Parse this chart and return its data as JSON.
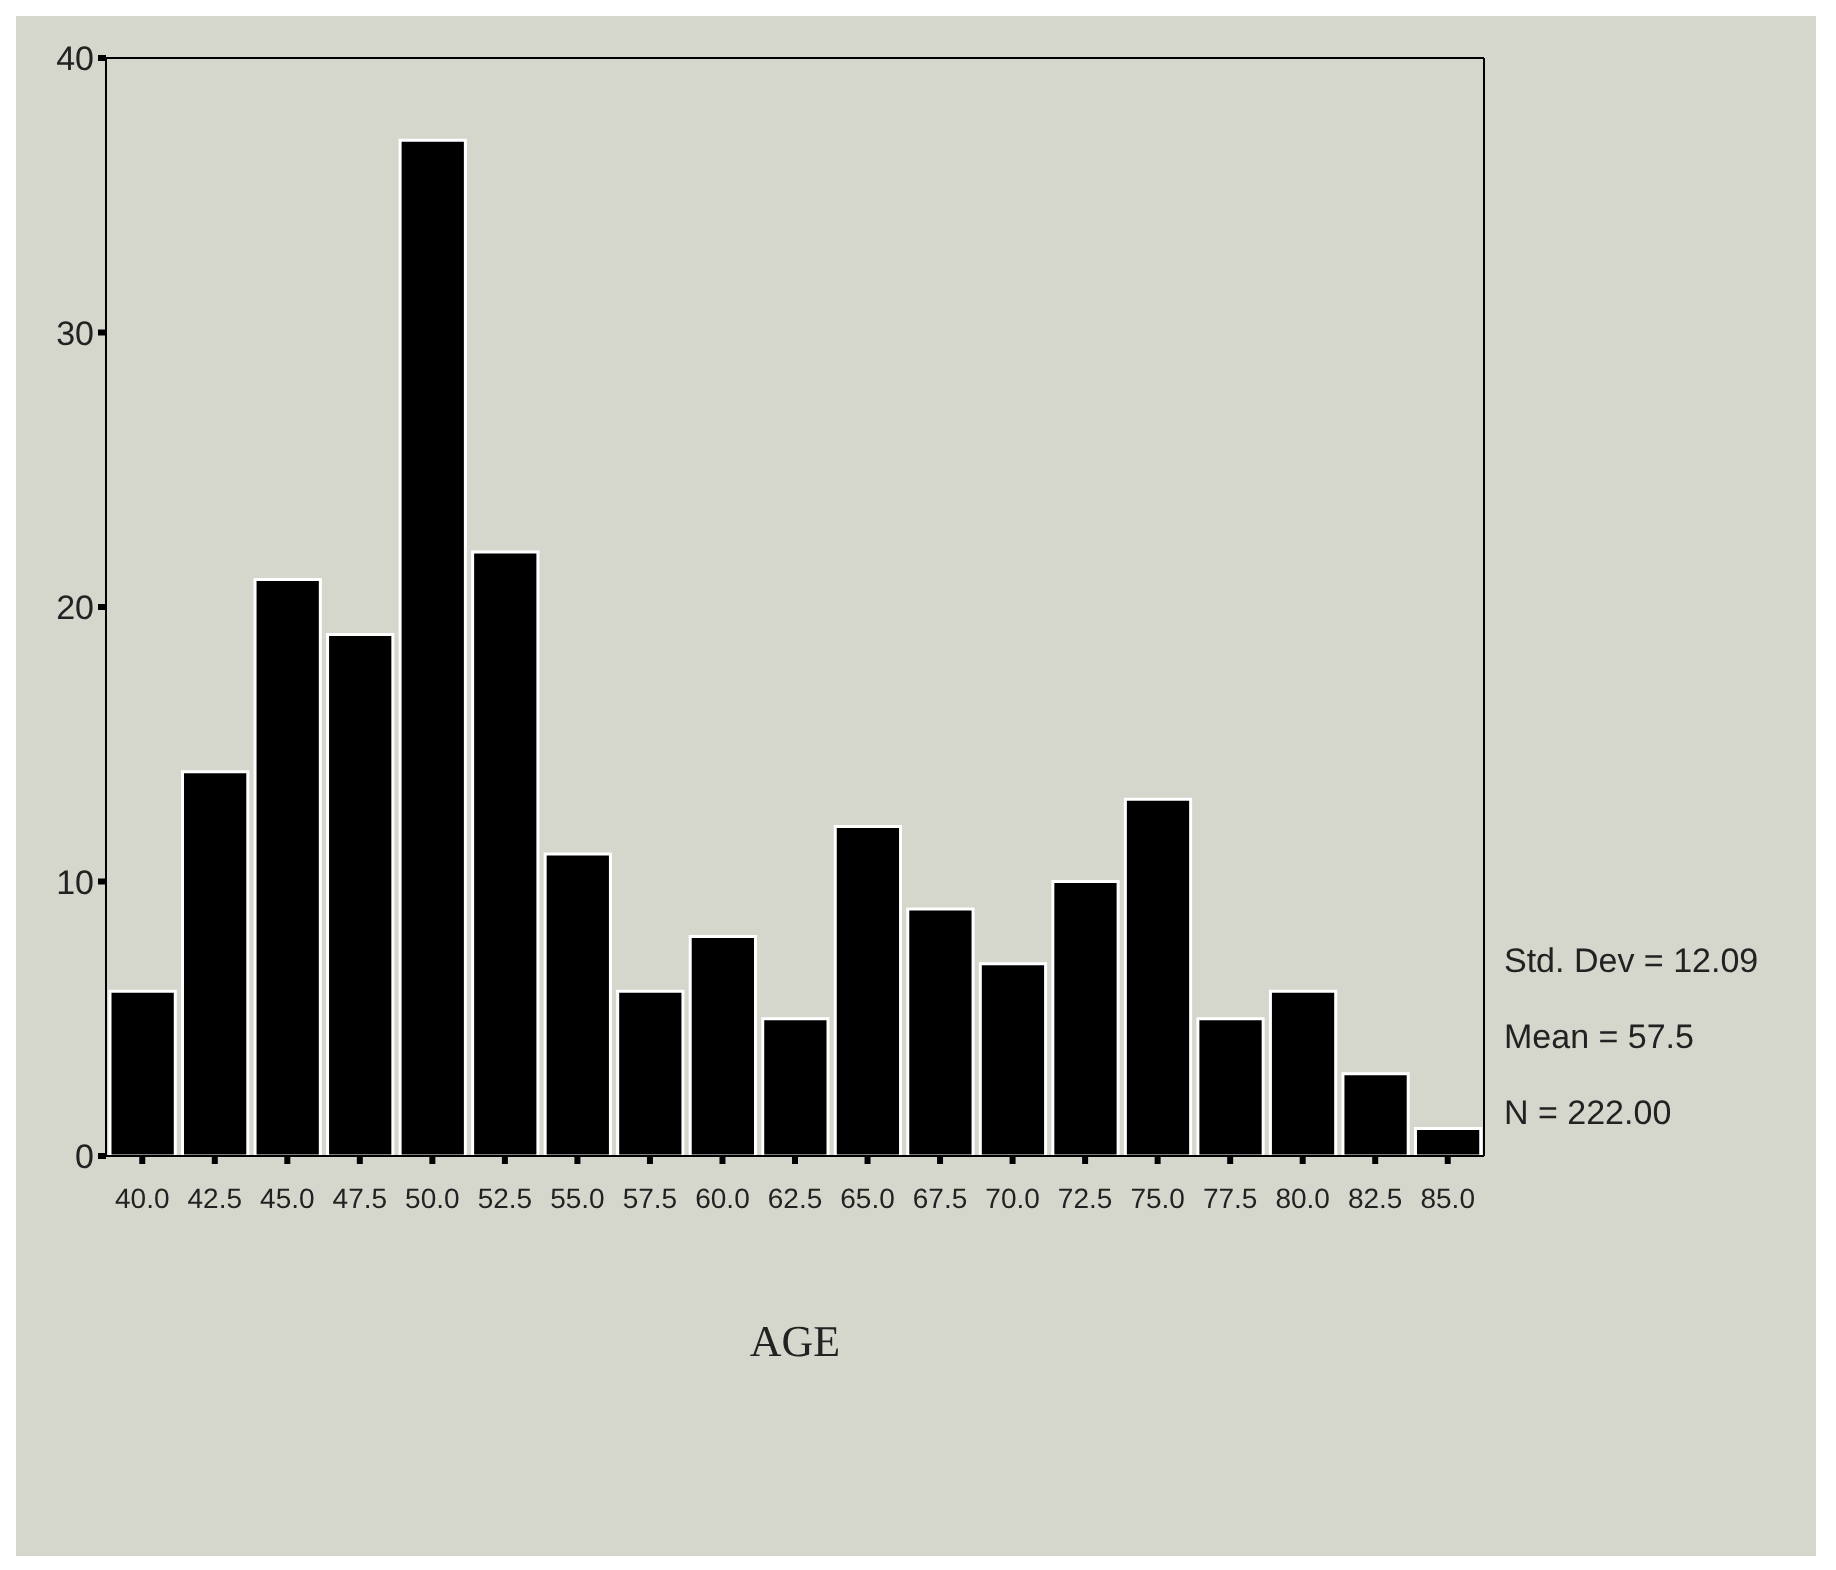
{
  "chart_data": {
    "type": "histogram",
    "xlabel": "AGE",
    "bins": [
      38.75,
      41.25,
      43.75,
      46.25,
      48.75,
      51.25,
      53.75,
      56.25,
      58.75,
      61.25,
      63.75,
      66.25,
      68.75,
      71.25,
      73.75,
      76.25,
      78.75,
      81.25,
      83.75,
      86.25
    ],
    "values": [
      6,
      14,
      21,
      19,
      37,
      22,
      11,
      6,
      8,
      5,
      12,
      9,
      7,
      10,
      13,
      5,
      6,
      3,
      1
    ],
    "color": "#000000",
    "xlim": [
      38.75,
      86.25
    ],
    "xticks": [
      {
        "value": 40,
        "label": "40.0"
      },
      {
        "value": 42.5,
        "label": "42.5"
      },
      {
        "value": 45,
        "label": "45.0"
      },
      {
        "value": 47.5,
        "label": "47.5"
      },
      {
        "value": 50,
        "label": "50.0"
      },
      {
        "value": 52.5,
        "label": "52.5"
      },
      {
        "value": 55,
        "label": "55.0"
      },
      {
        "value": 57.5,
        "label": "57.5"
      },
      {
        "value": 60,
        "label": "60.0"
      },
      {
        "value": 62.5,
        "label": "62.5"
      },
      {
        "value": 65,
        "label": "65.0"
      },
      {
        "value": 67.5,
        "label": "67.5"
      },
      {
        "value": 70,
        "label": "70.0"
      },
      {
        "value": 72.5,
        "label": "72.5"
      },
      {
        "value": 75,
        "label": "75.0"
      },
      {
        "value": 77.5,
        "label": "77.5"
      },
      {
        "value": 80,
        "label": "80.0"
      },
      {
        "value": 82.5,
        "label": "82.5"
      },
      {
        "value": 85,
        "label": "85.0"
      }
    ],
    "ylim": [
      0,
      40
    ],
    "yticks": [
      0,
      10,
      20,
      30,
      40
    ],
    "annotations": [
      "Std. Dev = 12.09",
      "Mean = 57.5",
      "N = 222.00"
    ],
    "grid": false,
    "legend": false
  }
}
